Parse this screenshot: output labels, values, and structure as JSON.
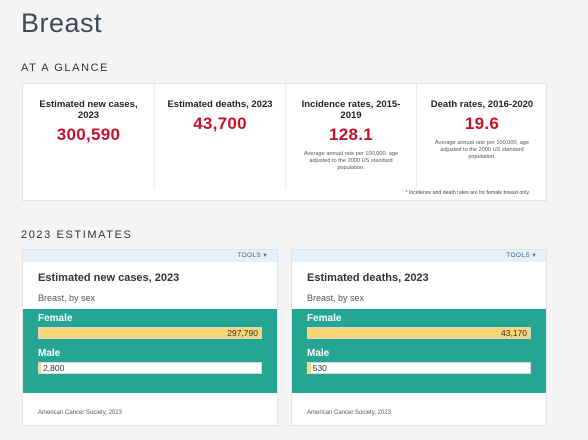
{
  "page": {
    "title": "Breast"
  },
  "glance": {
    "heading": "AT A GLANCE",
    "stats": [
      {
        "label": "Estimated new cases, 2023",
        "value": "300,590",
        "note": ""
      },
      {
        "label": "Estimated deaths, 2023",
        "value": "43,700",
        "note": ""
      },
      {
        "label": "Incidence rates, 2015-2019",
        "value": "128.1",
        "note": "Average annual rate per 100,000, age adjusted to the 2000 US standard population."
      },
      {
        "label": "Death rates, 2016-2020",
        "value": "19.6",
        "note": "Average annual rate per 100,000, age adjusted to the 2000 US standard population."
      }
    ],
    "footnote": "* Incidence and death rates are for female breast only."
  },
  "estimates": {
    "heading": "2023 ESTIMATES",
    "tools_label": "TOOLS ▾",
    "cards": [
      {
        "title": "Estimated new cases, 2023",
        "subtitle": "Breast, by sex",
        "source": "American Cancer Society, 2023",
        "chart_data": {
          "type": "bar",
          "orientation": "horizontal",
          "categories": [
            "Female",
            "Male"
          ],
          "values": [
            297790,
            2800
          ],
          "value_labels": [
            "297,790",
            "2,800"
          ]
        }
      },
      {
        "title": "Estimated deaths, 2023",
        "subtitle": "Breast, by sex",
        "source": "American Cancer Society, 2023",
        "chart_data": {
          "type": "bar",
          "orientation": "horizontal",
          "categories": [
            "Female",
            "Male"
          ],
          "values": [
            43170,
            530
          ],
          "value_labels": [
            "43,170",
            "530"
          ]
        }
      }
    ]
  },
  "colors": {
    "accent_red": "#c8102e",
    "chart_bg": "#26a593",
    "bar_fill": "#f7d774",
    "tools_bar": "#e6f0f8"
  }
}
